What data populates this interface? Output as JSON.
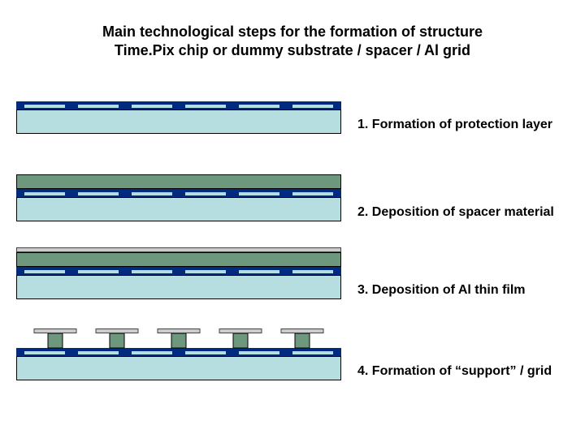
{
  "title_line1": "Main technological steps for the formation of structure",
  "title_line2": "Time.Pix chip or dummy substrate / spacer / Al grid",
  "colors": {
    "substrate_fill": "#b6dee0",
    "substrate_stroke": "#000000",
    "blue_layer": "#002b7f",
    "spacer_fill": "#6d987d",
    "spacer_stroke": "#000000",
    "al_fill": "#cccccc",
    "al_stroke": "#444444",
    "segment_fill": "#b6dee0",
    "background": "#ffffff"
  },
  "layout": {
    "diagram_width": 400,
    "row_tops": [
      125,
      215,
      305,
      405
    ],
    "substrate_height": 30,
    "blue_height": 10,
    "spacer_height": 18,
    "al_height": 6,
    "segment_width": 50,
    "segment_height": 4,
    "segment_count": 6,
    "segment_gap": 16,
    "pillar_count": 5,
    "pillar_width": 18,
    "cap_width": 52,
    "cap_height": 6,
    "pillar_gap": 24
  },
  "steps": [
    {
      "caption": "1. Formation of protection layer"
    },
    {
      "caption": "2. Deposition of spacer material"
    },
    {
      "caption": "3. Deposition of Al thin film"
    },
    {
      "caption": "4. Formation of “support” / grid"
    }
  ]
}
